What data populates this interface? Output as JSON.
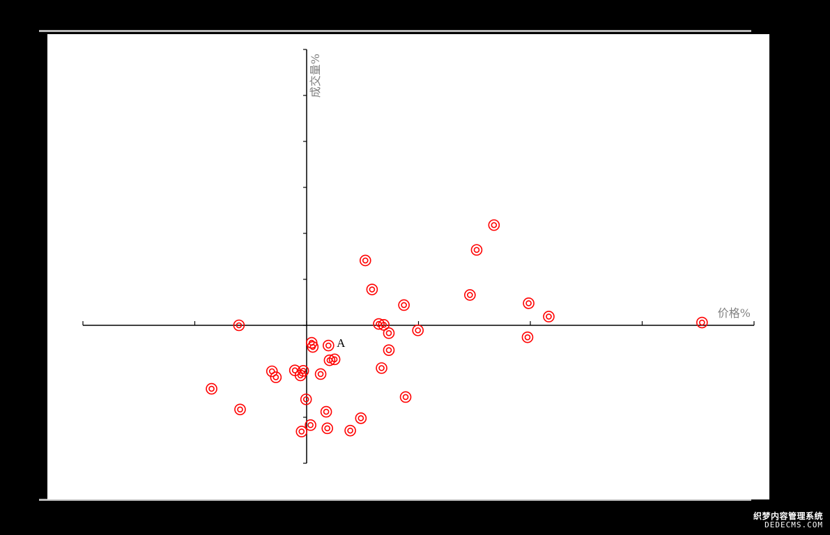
{
  "chart_data": {
    "type": "scatter",
    "title": "",
    "xlabel": "价格%",
    "ylabel": "成交量%",
    "xlim": [
      -4,
      8
    ],
    "ylim": [
      -3,
      6
    ],
    "x_ticks": [
      -4,
      -2,
      0,
      2,
      4,
      6,
      8
    ],
    "y_ticks": [
      -3,
      -2,
      -1,
      0,
      1,
      2,
      3,
      4,
      5,
      6
    ],
    "tick_labels_shown": false,
    "grid": false,
    "legend": "none",
    "marker": "double-circle",
    "marker_color": "#ff0000",
    "annotations": [
      {
        "text": "A",
        "x": 0.5,
        "y": -0.38
      }
    ],
    "points": [
      {
        "x": 3.35,
        "y": 2.18
      },
      {
        "x": 3.04,
        "y": 1.64
      },
      {
        "x": 1.05,
        "y": 1.41
      },
      {
        "x": 1.17,
        "y": 0.78
      },
      {
        "x": 2.92,
        "y": 0.66
      },
      {
        "x": 3.97,
        "y": 0.48
      },
      {
        "x": 1.74,
        "y": 0.44
      },
      {
        "x": 4.33,
        "y": 0.19
      },
      {
        "x": 7.07,
        "y": 0.06
      },
      {
        "x": -1.21,
        "y": 0.0
      },
      {
        "x": 1.29,
        "y": 0.03
      },
      {
        "x": 1.38,
        "y": 0.01
      },
      {
        "x": 1.47,
        "y": -0.17
      },
      {
        "x": 1.99,
        "y": -0.11
      },
      {
        "x": 3.95,
        "y": -0.26
      },
      {
        "x": 0.09,
        "y": -0.38
      },
      {
        "x": 0.11,
        "y": -0.47
      },
      {
        "x": 0.39,
        "y": -0.44
      },
      {
        "x": 1.47,
        "y": -0.54
      },
      {
        "x": 0.41,
        "y": -0.76
      },
      {
        "x": 0.5,
        "y": -0.74
      },
      {
        "x": 1.34,
        "y": -0.93
      },
      {
        "x": -0.62,
        "y": -1.0
      },
      {
        "x": -0.55,
        "y": -1.13
      },
      {
        "x": -0.21,
        "y": -0.98
      },
      {
        "x": -0.06,
        "y": -0.99
      },
      {
        "x": -0.11,
        "y": -1.09
      },
      {
        "x": 0.25,
        "y": -1.06
      },
      {
        "x": -1.7,
        "y": -1.38
      },
      {
        "x": 1.77,
        "y": -1.56
      },
      {
        "x": -0.01,
        "y": -1.61
      },
      {
        "x": -1.19,
        "y": -1.83
      },
      {
        "x": 0.35,
        "y": -1.88
      },
      {
        "x": 0.97,
        "y": -2.02
      },
      {
        "x": 0.07,
        "y": -2.17
      },
      {
        "x": 0.37,
        "y": -2.24
      },
      {
        "x": 0.78,
        "y": -2.29
      },
      {
        "x": -0.09,
        "y": -2.31
      }
    ]
  },
  "watermark": {
    "line1": "织梦内容管理系统",
    "line2": "DEDECMS.COM"
  }
}
